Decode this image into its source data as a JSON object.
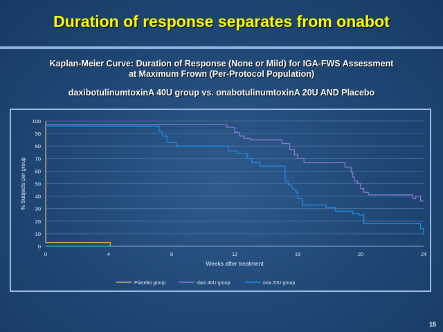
{
  "slide": {
    "title": "Duration of response separates from onabot",
    "subtitle_line1": "Kaplan-Meier Curve: Duration of Response (None or Mild) for IGA-FWS Assessment",
    "subtitle_line2": "at Maximum Frown (Per-Protocol Population)",
    "comparison": "daxibotulinumtoxinA 40U group vs. onabotulinumtoxinA 20U AND Placebo",
    "slide_number": "15"
  },
  "chart_data": {
    "type": "line",
    "step": true,
    "title": "",
    "xlabel": "Weeks after treatment",
    "ylabel": "% Subjects per group",
    "xlim": [
      0,
      24
    ],
    "ylim": [
      0,
      100
    ],
    "xticks": [
      0,
      4,
      8,
      12,
      16,
      20,
      24
    ],
    "yticks": [
      0,
      10,
      20,
      30,
      40,
      50,
      60,
      70,
      80,
      90,
      100
    ],
    "grid": true,
    "legend_position": "bottom",
    "series": [
      {
        "name": "Placebo group",
        "color": "#d9a878",
        "x": [
          0,
          0,
          4.1,
          4.1
        ],
        "y": [
          100,
          3,
          3,
          0
        ]
      },
      {
        "name": "daxi 40U group",
        "color": "#8c78d8",
        "x": [
          0,
          11.5,
          11.5,
          12,
          12,
          12.3,
          12.3,
          12.6,
          12.6,
          13,
          13,
          13.5,
          13.5,
          15,
          15,
          15.5,
          15.5,
          15.8,
          15.8,
          16,
          16,
          16.4,
          16.4,
          19,
          19,
          19.4,
          19.4,
          19.5,
          19.5,
          19.6,
          19.6,
          19.8,
          19.8,
          20,
          20,
          20.2,
          20.2,
          20.5,
          20.5,
          23.3,
          23.3,
          23.5,
          23.5,
          23.8,
          23.8,
          24
        ],
        "y": [
          97,
          97,
          95,
          95,
          91,
          91,
          88,
          88,
          86,
          86,
          85,
          85,
          85,
          85,
          82,
          82,
          77,
          77,
          73,
          73,
          70,
          70,
          67,
          67,
          63,
          63,
          59,
          59,
          55,
          55,
          52,
          52,
          50,
          50,
          46,
          46,
          43,
          43,
          41,
          41,
          38,
          38,
          40,
          40,
          36,
          36
        ]
      },
      {
        "name": "ona 20U group",
        "color": "#1a8fe8",
        "x": [
          0,
          7.2,
          7.2,
          7.4,
          7.4,
          7.7,
          7.7,
          8.3,
          8.3,
          9.5,
          9.5,
          11.6,
          11.6,
          12.2,
          12.2,
          12.8,
          12.8,
          13.1,
          13.1,
          13.4,
          13.4,
          13.6,
          13.6,
          14.3,
          14.3,
          15.2,
          15.2,
          15.4,
          15.4,
          15.6,
          15.6,
          15.7,
          15.7,
          15.9,
          15.9,
          16,
          16,
          16.3,
          16.3,
          17.8,
          17.8,
          17.9,
          17.9,
          18.4,
          18.4,
          19.5,
          19.5,
          19.9,
          19.9,
          20.2,
          20.2,
          23.8,
          23.8,
          24,
          24
        ],
        "y": [
          96,
          96,
          92,
          92,
          88,
          88,
          83,
          83,
          80,
          80,
          80,
          80,
          76,
          76,
          74,
          74,
          70,
          70,
          67,
          67,
          67,
          67,
          64,
          64,
          64,
          64,
          52,
          52,
          49,
          49,
          47,
          47,
          45,
          45,
          43,
          43,
          38,
          38,
          33,
          33,
          31,
          31,
          31,
          31,
          28,
          28,
          26,
          26,
          25,
          25,
          18,
          18,
          14,
          14,
          9
        ]
      }
    ]
  }
}
